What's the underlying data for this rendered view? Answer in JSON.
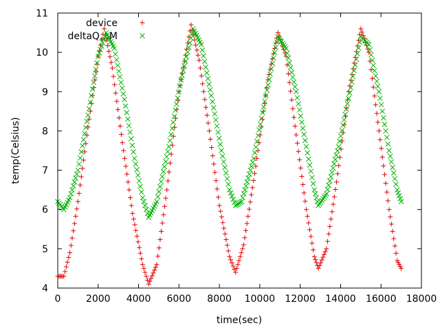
{
  "chart_data": {
    "type": "scatter",
    "title": "",
    "xlabel": "time(sec)",
    "ylabel": "temp(Celsius)",
    "xlim": [
      0,
      18000
    ],
    "ylim": [
      4,
      11
    ],
    "xticks": [
      0,
      2000,
      4000,
      6000,
      8000,
      10000,
      12000,
      14000,
      16000,
      18000
    ],
    "yticks": [
      4,
      5,
      6,
      7,
      8,
      9,
      10,
      11
    ],
    "grid": false,
    "legend_position": "top-left",
    "series": [
      {
        "name": "device",
        "marker": "plus",
        "color": "#e00000",
        "points": [
          [
            0,
            4.3
          ],
          [
            300,
            4.3
          ],
          [
            600,
            4.9
          ],
          [
            1000,
            6.2
          ],
          [
            1500,
            8.1
          ],
          [
            2000,
            9.9
          ],
          [
            2300,
            10.6
          ],
          [
            2700,
            9.6
          ],
          [
            3200,
            7.7
          ],
          [
            3700,
            5.9
          ],
          [
            4200,
            4.6
          ],
          [
            4500,
            4.1
          ],
          [
            4900,
            4.6
          ],
          [
            5400,
            6.5
          ],
          [
            6000,
            9.0
          ],
          [
            6600,
            10.7
          ],
          [
            7000,
            9.8
          ],
          [
            7500,
            8.0
          ],
          [
            8000,
            6.1
          ],
          [
            8500,
            4.8
          ],
          [
            8800,
            4.4
          ],
          [
            9200,
            5.1
          ],
          [
            9800,
            7.1
          ],
          [
            10400,
            9.3
          ],
          [
            10900,
            10.5
          ],
          [
            11300,
            9.9
          ],
          [
            11800,
            7.9
          ],
          [
            12300,
            6.0
          ],
          [
            12700,
            4.8
          ],
          [
            12900,
            4.5
          ],
          [
            13300,
            5.0
          ],
          [
            13800,
            6.7
          ],
          [
            14400,
            9.0
          ],
          [
            15000,
            10.6
          ],
          [
            15400,
            10.0
          ],
          [
            15900,
            8.0
          ],
          [
            16400,
            6.0
          ],
          [
            16800,
            4.7
          ],
          [
            17000,
            4.5
          ]
        ]
      },
      {
        "name": "deltaQ…M",
        "marker": "cross",
        "color": "#00b000",
        "points": [
          [
            0,
            6.2
          ],
          [
            300,
            6.0
          ],
          [
            600,
            6.3
          ],
          [
            1000,
            7.0
          ],
          [
            1500,
            8.4
          ],
          [
            2000,
            9.9
          ],
          [
            2400,
            10.5
          ],
          [
            2800,
            10.1
          ],
          [
            3300,
            8.8
          ],
          [
            3800,
            7.3
          ],
          [
            4200,
            6.3
          ],
          [
            4500,
            5.8
          ],
          [
            4900,
            6.2
          ],
          [
            5500,
            7.6
          ],
          [
            6100,
            9.3
          ],
          [
            6700,
            10.6
          ],
          [
            7100,
            10.2
          ],
          [
            7600,
            8.9
          ],
          [
            8100,
            7.5
          ],
          [
            8500,
            6.5
          ],
          [
            8800,
            6.1
          ],
          [
            9100,
            6.2
          ],
          [
            9700,
            7.3
          ],
          [
            10300,
            8.9
          ],
          [
            10900,
            10.4
          ],
          [
            11300,
            10.1
          ],
          [
            11800,
            9.0
          ],
          [
            12300,
            7.6
          ],
          [
            12700,
            6.5
          ],
          [
            12900,
            6.1
          ],
          [
            13300,
            6.4
          ],
          [
            13900,
            7.6
          ],
          [
            14500,
            9.1
          ],
          [
            15000,
            10.4
          ],
          [
            15400,
            10.2
          ],
          [
            15900,
            9.0
          ],
          [
            16400,
            7.5
          ],
          [
            16800,
            6.5
          ],
          [
            17000,
            6.2
          ]
        ]
      }
    ]
  },
  "legend": {
    "entries": [
      {
        "label": "device",
        "color": "#e00000",
        "marker": "plus"
      },
      {
        "label": "deltaQ…M",
        "color": "#00b000",
        "marker": "cross"
      }
    ]
  }
}
